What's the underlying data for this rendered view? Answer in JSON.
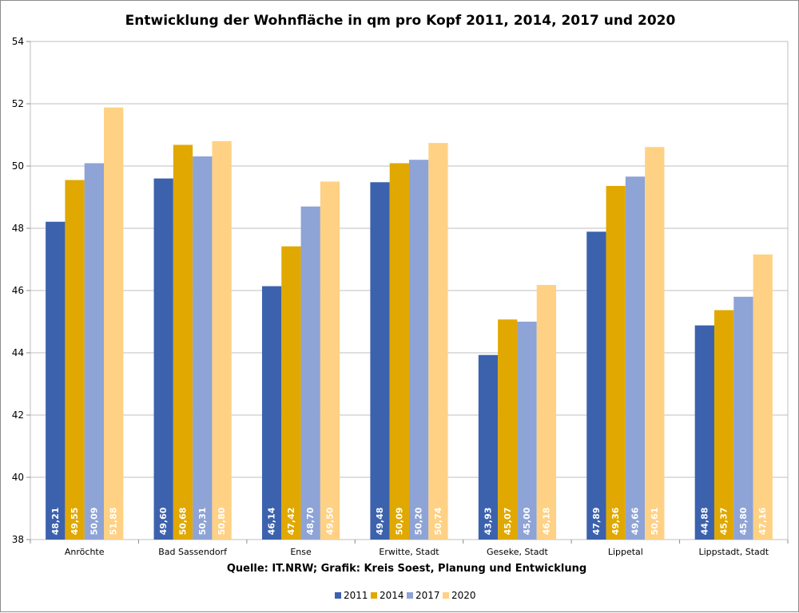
{
  "chart_data": {
    "type": "bar",
    "title": "Entwicklung der Wohnfläche in qm pro Kopf 2011, 2014, 2017 und 2020",
    "source": "Quelle: IT.NRW; Grafik: Kreis Soest, Planung und Entwicklung",
    "categories": [
      "Anröchte",
      "Bad Sassendorf",
      "Ense",
      "Erwitte, Stadt",
      "Geseke, Stadt",
      "Lippetal",
      "Lippstadt, Stadt"
    ],
    "series": [
      {
        "name": "2011",
        "color": "#3c62ad",
        "values": [
          48.21,
          49.6,
          46.14,
          49.48,
          43.93,
          47.89,
          44.88
        ],
        "labels": [
          "48,21",
          "49,60",
          "46,14",
          "49,48",
          "43,93",
          "47,89",
          "44,88"
        ]
      },
      {
        "name": "2014",
        "color": "#e0a800",
        "values": [
          49.55,
          50.68,
          47.42,
          50.09,
          45.07,
          49.36,
          45.37
        ],
        "labels": [
          "49,55",
          "50,68",
          "47,42",
          "50,09",
          "45,07",
          "49,36",
          "45,37"
        ]
      },
      {
        "name": "2017",
        "color": "#8ea3d6",
        "values": [
          50.09,
          50.31,
          48.7,
          50.2,
          45.0,
          49.66,
          45.8
        ],
        "labels": [
          "50,09",
          "50,31",
          "48,70",
          "50,20",
          "45,00",
          "49,66",
          "45,80"
        ]
      },
      {
        "name": "2020",
        "color": "#ffd184",
        "values": [
          51.88,
          50.8,
          49.5,
          50.74,
          46.18,
          50.61,
          47.16
        ],
        "labels": [
          "51,88",
          "50,80",
          "49,50",
          "50,74",
          "46,18",
          "50,61",
          "47,16"
        ]
      }
    ],
    "ylim": [
      38,
      54
    ],
    "yticks": [
      38,
      40,
      42,
      44,
      46,
      48,
      50,
      52,
      54
    ],
    "xlabel": "",
    "ylabel": "",
    "grid": true,
    "legend": "bottom"
  }
}
